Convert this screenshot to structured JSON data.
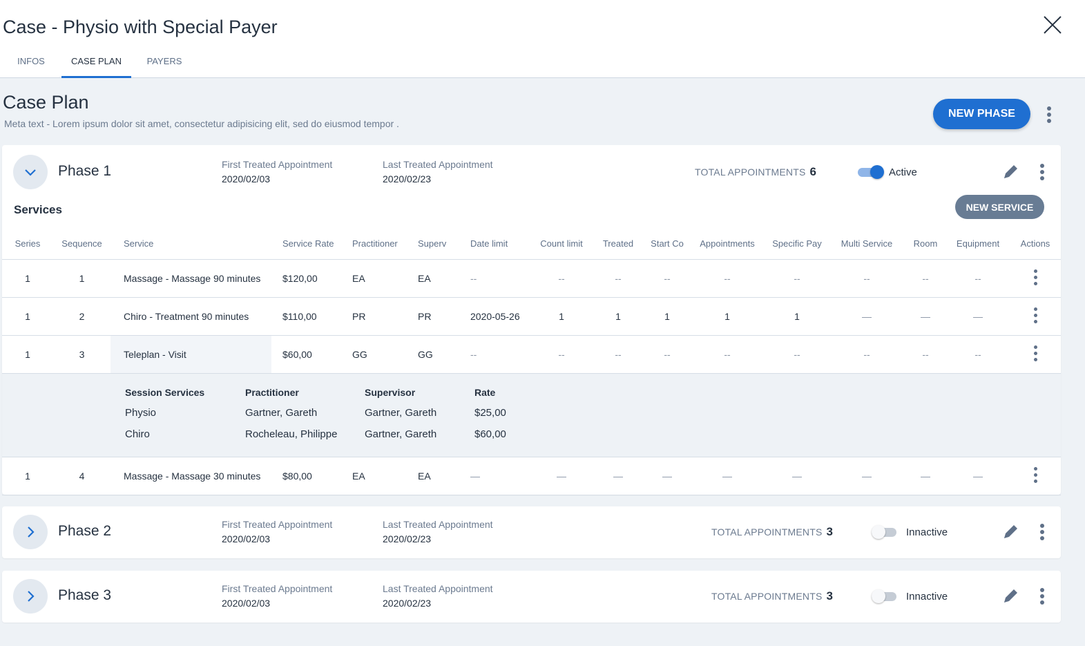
{
  "header": {
    "title": "Case - Physio with Special Payer",
    "tabs": [
      {
        "label": "INFOS"
      },
      {
        "label": "CASE PLAN",
        "active": true
      },
      {
        "label": "PAYERS"
      }
    ]
  },
  "main": {
    "title": "Case Plan",
    "meta": "Meta text - Lorem ipsum dolor sit amet, consectetur adipisicing elit, sed do eiusmod tempor .",
    "new_phase": "NEW PHASE"
  },
  "colors": {
    "accent": "#1f6fd1",
    "secondary_button": "#687c94",
    "background": "#eef2f6"
  },
  "labels": {
    "first": "First Treated Appointment",
    "last": "Last Treated Appointment",
    "total": "TOTAL APPOINTMENTS",
    "services": "Services",
    "new_service": "NEW SERVICE"
  },
  "phases": [
    {
      "name": "Phase 1",
      "expanded": true,
      "first": "2020/02/03",
      "last": "2020/02/23",
      "total": "6",
      "active": true,
      "status": "Active"
    },
    {
      "name": "Phase 2",
      "expanded": false,
      "first": "2020/02/03",
      "last": "2020/02/23",
      "total": "3",
      "active": false,
      "status": "Innactive"
    },
    {
      "name": "Phase 3",
      "expanded": false,
      "first": "2020/02/03",
      "last": "2020/02/23",
      "total": "3",
      "active": false,
      "status": "Innactive"
    }
  ],
  "table": {
    "columns": [
      "Series",
      "Sequence",
      "Service",
      "Service Rate",
      "Practitioner",
      "Superv",
      "Date limit",
      "Count limit",
      "Treated",
      "Start Co",
      "Appointments",
      "Specific Pay",
      "Multi Service",
      "Room",
      "Equipment",
      "Actions"
    ],
    "rows": [
      [
        "1",
        "1",
        "Massage - Massage 90 minutes",
        "$120,00",
        "EA",
        "EA",
        "--",
        "--",
        "--",
        "--",
        "--",
        "--",
        "--",
        "--",
        "--"
      ],
      [
        "1",
        "2",
        "Chiro - Treatment 90 minutes",
        "$110,00",
        "PR",
        "PR",
        "2020-05-26",
        "1",
        "1",
        "1",
        "1",
        "1",
        "—",
        "—",
        "—"
      ],
      [
        "1",
        "3",
        "Teleplan - Visit",
        "$60,00",
        "GG",
        "GG",
        "--",
        "--",
        "--",
        "--",
        "--",
        "--",
        "--",
        "--",
        "--"
      ],
      [
        "1",
        "4",
        "Massage - Massage 30 minutes",
        "$80,00",
        "EA",
        "EA",
        "—",
        "—",
        "—",
        "—",
        "—",
        "—",
        "—",
        "—",
        "—"
      ]
    ],
    "session": {
      "columns": [
        "Session Services",
        "Practitioner",
        "Supervisor",
        "Rate"
      ],
      "rows": [
        [
          "Physio",
          "Gartner, Gareth",
          "Gartner, Gareth",
          "$25,00"
        ],
        [
          "Chiro",
          "Rocheleau, Philippe",
          "Gartner, Gareth",
          "$60,00"
        ]
      ]
    }
  }
}
